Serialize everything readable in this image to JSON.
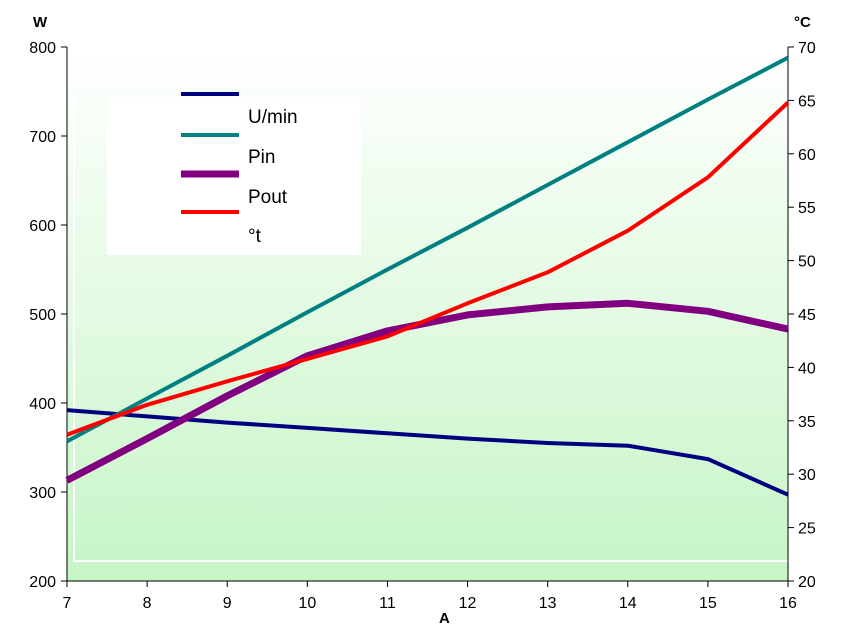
{
  "chart_data": {
    "type": "line",
    "title": "",
    "xlabel": "A",
    "ylabel_left": "W",
    "ylabel_right": "°C",
    "xlim": [
      7,
      16
    ],
    "ylim_left": [
      200,
      800
    ],
    "ylim_right": [
      20,
      70
    ],
    "x_ticks": [
      "7",
      "8",
      "9",
      "10",
      "11",
      "12",
      "13",
      "14",
      "15",
      "16"
    ],
    "y_ticks_left": [
      "200",
      "300",
      "400",
      "500",
      "600",
      "700",
      "800"
    ],
    "y_ticks_right": [
      "20",
      "25",
      "30",
      "35",
      "40",
      "45",
      "50",
      "55",
      "60",
      "65",
      "70"
    ],
    "grid": false,
    "legend_position": "top-left",
    "background": "light green gradient",
    "series": [
      {
        "name": "U/min",
        "axis": "left",
        "color": "#000080",
        "x": [
          7,
          8,
          9,
          10,
          11,
          12,
          13,
          14,
          15,
          16
        ],
        "y": [
          392,
          385,
          378,
          372,
          366,
          360,
          355,
          352,
          337,
          297
        ]
      },
      {
        "name": "Pin",
        "axis": "left",
        "color": "#008080",
        "x": [
          7,
          8,
          9,
          10,
          11,
          12,
          13,
          14,
          15,
          16
        ],
        "y": [
          357,
          405,
          453,
          502,
          550,
          597,
          645,
          693,
          741,
          788
        ]
      },
      {
        "name": "Pout",
        "axis": "left",
        "color": "#800080",
        "x": [
          7,
          8,
          9,
          10,
          11,
          12,
          13,
          14,
          15,
          16
        ],
        "y": [
          313,
          360,
          408,
          453,
          481,
          499,
          508,
          512,
          503,
          483
        ]
      },
      {
        "name": "°t",
        "axis": "right",
        "color": "#FF0000",
        "x": [
          7,
          8,
          9,
          10,
          11,
          12,
          13,
          14,
          15,
          16
        ],
        "y": [
          33.7,
          36.5,
          38.7,
          40.8,
          42.9,
          46.0,
          48.9,
          52.8,
          57.8,
          64.8
        ]
      }
    ]
  }
}
